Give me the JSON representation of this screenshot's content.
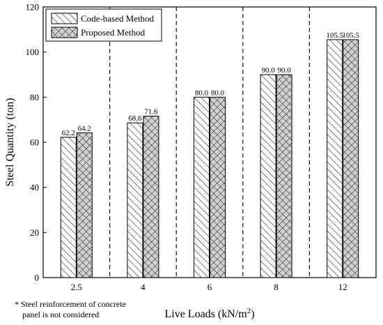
{
  "chart_data": {
    "type": "bar",
    "categories": [
      "2.5",
      "4",
      "6",
      "8",
      "12"
    ],
    "series": [
      {
        "name": "Code-based Method",
        "values": [
          62.2,
          68.6,
          80.0,
          90.0,
          105.5
        ],
        "labels": [
          "62.2",
          "68.6",
          "80.0",
          "90.0",
          "105.5"
        ],
        "pattern": "diagonal-hatch"
      },
      {
        "name": "Proposed Method",
        "values": [
          64.2,
          71.6,
          80.0,
          90.0,
          105.5
        ],
        "labels": [
          "64.2",
          "71.6",
          "80.0",
          "90.0",
          "105.5"
        ],
        "pattern": "cross-hatch"
      }
    ],
    "xlabel": "Live Loads (kN/m",
    "xlabel_sup": "2",
    "xlabel_end": ")",
    "ylabel": "Steel Quantity (ton)",
    "ylim": [
      0,
      120
    ],
    "yticks": [
      "0",
      "20",
      "40",
      "60",
      "80",
      "100",
      "120"
    ],
    "legend_position": "top-left",
    "grid": false,
    "group_separators": "dashed-vertical",
    "colors": {
      "bar_fill": "#ffffff",
      "hatch": "#000000",
      "proposed_bg": "#d0d0d0"
    }
  },
  "footnote": {
    "line1": "* Steel reinforcement of concrete",
    "line2": "panel is not considered"
  }
}
